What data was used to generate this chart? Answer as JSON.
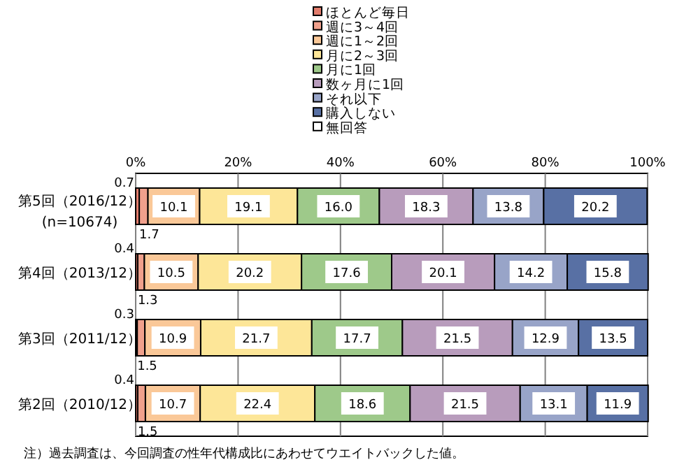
{
  "chart_data": {
    "type": "bar",
    "orientation": "horizontal",
    "stacked": true,
    "data_labels": true,
    "grid": "x",
    "legend": "top",
    "categories": [
      "第5回（2016/12）\n(n=10674)",
      "第4回（2013/12）",
      "第3回（2011/12）",
      "第2回（2010/12）"
    ],
    "xlim": [
      0,
      100
    ],
    "xticks": [
      {
        "value": 0,
        "label": "0%"
      },
      {
        "value": 20,
        "label": "20%"
      },
      {
        "value": 40,
        "label": "40%"
      },
      {
        "value": 60,
        "label": "60%"
      },
      {
        "value": 80,
        "label": "80%"
      },
      {
        "value": 100,
        "label": "100%"
      }
    ],
    "series": [
      {
        "name": "ほとんど毎日",
        "color": "#e27c6c",
        "values": [
          0.7,
          0.4,
          0.3,
          0.4
        ]
      },
      {
        "name": "週に3～4回",
        "color": "#f0a08c",
        "values": [
          1.7,
          1.3,
          1.5,
          1.5
        ]
      },
      {
        "name": "週に1～2回",
        "color": "#fac898",
        "values": [
          10.1,
          10.5,
          10.9,
          10.7
        ]
      },
      {
        "name": "月に2～3回",
        "color": "#fde698",
        "values": [
          19.1,
          20.2,
          21.7,
          22.4
        ]
      },
      {
        "name": "月に1回",
        "color": "#9ec98a",
        "values": [
          16.0,
          17.6,
          17.7,
          18.6
        ],
        "value_labels": [
          "16.0",
          "17.6",
          "17.7",
          "18.6"
        ]
      },
      {
        "name": "数ヶ月に1回",
        "color": "#b89cbc",
        "values": [
          18.3,
          20.1,
          21.5,
          21.5
        ]
      },
      {
        "name": "それ以下",
        "color": "#98a4c8",
        "values": [
          13.8,
          14.2,
          12.9,
          13.1
        ]
      },
      {
        "name": "購入しない",
        "color": "#5870a4",
        "values": [
          20.2,
          15.8,
          13.5,
          11.9
        ]
      },
      {
        "name": "無回答",
        "color": "#ffffff",
        "values": [
          null,
          null,
          null,
          null
        ]
      }
    ],
    "annotations": [
      "注）過去調査は、今回調査の性年代構成比にあわせてウエイトバックした値。"
    ]
  }
}
